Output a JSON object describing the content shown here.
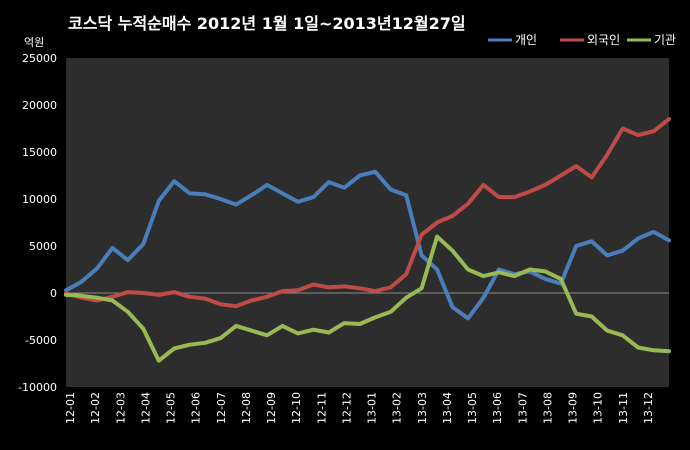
{
  "chart_data": {
    "type": "line",
    "title": "코스닥  누적순매수 2012년 1월 1일~2013년12월27일",
    "unit_label": "억원",
    "ylim": [
      -10000,
      25000
    ],
    "yticks": [
      25000,
      20000,
      15000,
      10000,
      5000,
      0,
      -5000,
      -10000
    ],
    "x_labels": [
      "12-01",
      "12-02",
      "12-03",
      "12-04",
      "12-05",
      "12-06",
      "12-07",
      "12-08",
      "12-09",
      "12-10",
      "12-11",
      "12-12",
      "13-01",
      "13-02",
      "13-03",
      "13-04",
      "13-05",
      "13-06",
      "13-07",
      "13-08",
      "13-09",
      "13-10",
      "13-11",
      "13-12"
    ],
    "grid": false,
    "legend_position": "top-right",
    "series": [
      {
        "name": "개인",
        "color": "#4a7ebb",
        "values": [
          300,
          1200,
          2600,
          4800,
          3500,
          5200,
          9800,
          11900,
          10600,
          10500,
          10000,
          9400,
          10400,
          11500,
          10600,
          9700,
          10200,
          11800,
          11200,
          12500,
          12900,
          11000,
          10400,
          4000,
          2500,
          -1500,
          -2700,
          -500,
          2500,
          2000,
          2300,
          1500,
          1000,
          5000,
          5500,
          4000,
          4500,
          5800,
          6500,
          5600
        ]
      },
      {
        "name": "외국인",
        "color": "#be4b48",
        "values": [
          0,
          -500,
          -800,
          -400,
          100,
          0,
          -200,
          100,
          -400,
          -600,
          -1200,
          -1400,
          -800,
          -400,
          200,
          300,
          900,
          600,
          700,
          500,
          200,
          600,
          2000,
          6200,
          7500,
          8200,
          9500,
          11500,
          10200,
          10200,
          10800,
          11500,
          12500,
          13500,
          12300,
          14700,
          17500,
          16800,
          17200,
          18500
        ]
      },
      {
        "name": "기관",
        "color": "#98b954",
        "values": [
          -200,
          -300,
          -500,
          -800,
          -2000,
          -3800,
          -7200,
          -5900,
          -5500,
          -5300,
          -4800,
          -3500,
          -4000,
          -4500,
          -3500,
          -4300,
          -3900,
          -4200,
          -3200,
          -3300,
          -2600,
          -2000,
          -500,
          500,
          6000,
          4500,
          2500,
          1800,
          2200,
          1800,
          2500,
          2300,
          1500,
          -2200,
          -2500,
          -4000,
          -4500,
          -5800,
          -6100,
          -6200
        ]
      }
    ]
  }
}
